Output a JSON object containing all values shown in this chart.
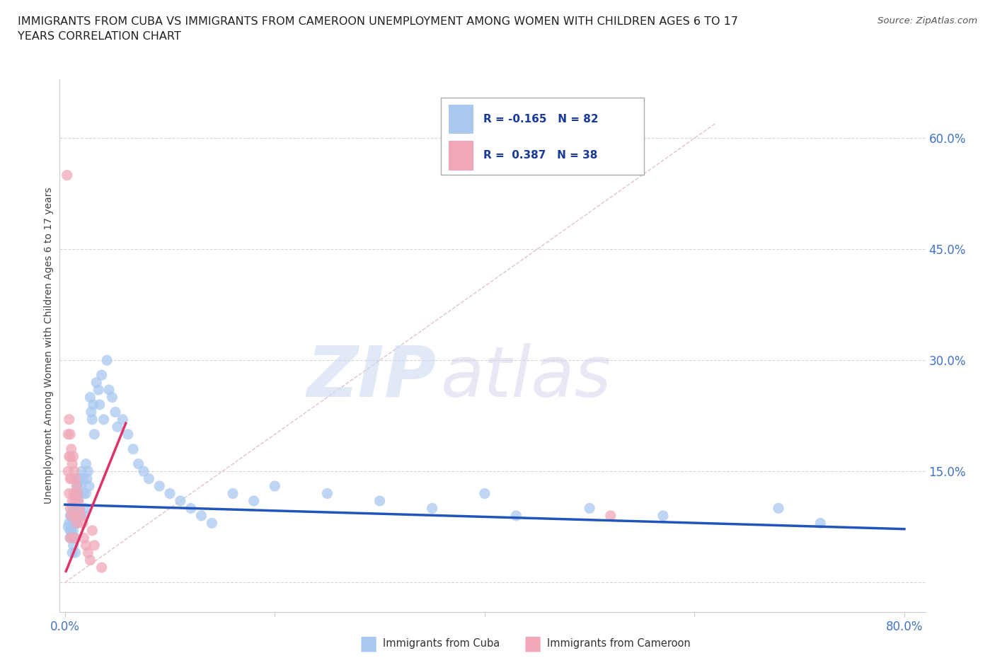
{
  "title": "IMMIGRANTS FROM CUBA VS IMMIGRANTS FROM CAMEROON UNEMPLOYMENT AMONG WOMEN WITH CHILDREN AGES 6 TO 17\nYEARS CORRELATION CHART",
  "source": "Source: ZipAtlas.com",
  "ylabel": "Unemployment Among Women with Children Ages 6 to 17 years",
  "xlim": [
    -0.005,
    0.82
  ],
  "ylim": [
    -0.04,
    0.68
  ],
  "yticks": [
    0.0,
    0.15,
    0.3,
    0.45,
    0.6
  ],
  "ytick_labels": [
    "",
    "15.0%",
    "30.0%",
    "45.0%",
    "60.0%"
  ],
  "legend_r_cuba": "-0.165",
  "legend_n_cuba": "82",
  "legend_r_cam": "0.387",
  "legend_n_cam": "38",
  "cuba_color": "#a8c8f0",
  "cameroon_color": "#f0a8b8",
  "cuba_line_color": "#2255bb",
  "cameroon_line_color": "#dd3366",
  "watermark_zip": "ZIP",
  "watermark_atlas": "atlas",
  "cuba_line_x0": 0.0,
  "cuba_line_y0": 0.105,
  "cuba_line_x1": 0.8,
  "cuba_line_y1": 0.072,
  "cam_line_x0": 0.001,
  "cam_line_y0": 0.015,
  "cam_line_x1": 0.058,
  "cam_line_y1": 0.215,
  "diag_line_color": "#ddbbcc",
  "cuba_x": [
    0.003,
    0.004,
    0.005,
    0.005,
    0.005,
    0.006,
    0.006,
    0.007,
    0.007,
    0.007,
    0.007,
    0.008,
    0.008,
    0.008,
    0.009,
    0.009,
    0.009,
    0.01,
    0.01,
    0.01,
    0.01,
    0.01,
    0.011,
    0.011,
    0.012,
    0.012,
    0.012,
    0.013,
    0.013,
    0.014,
    0.014,
    0.015,
    0.015,
    0.016,
    0.017,
    0.018,
    0.018,
    0.019,
    0.02,
    0.02,
    0.021,
    0.022,
    0.023,
    0.024,
    0.025,
    0.026,
    0.027,
    0.028,
    0.03,
    0.032,
    0.033,
    0.035,
    0.037,
    0.04,
    0.042,
    0.045,
    0.048,
    0.05,
    0.055,
    0.06,
    0.065,
    0.07,
    0.075,
    0.08,
    0.09,
    0.1,
    0.11,
    0.12,
    0.13,
    0.14,
    0.16,
    0.18,
    0.2,
    0.25,
    0.3,
    0.35,
    0.4,
    0.43,
    0.5,
    0.57,
    0.68,
    0.72
  ],
  "cuba_y": [
    0.075,
    0.08,
    0.09,
    0.07,
    0.06,
    0.09,
    0.07,
    0.1,
    0.08,
    0.06,
    0.04,
    0.09,
    0.07,
    0.05,
    0.1,
    0.08,
    0.06,
    0.12,
    0.1,
    0.08,
    0.06,
    0.04,
    0.11,
    0.09,
    0.13,
    0.11,
    0.08,
    0.12,
    0.09,
    0.14,
    0.1,
    0.13,
    0.09,
    0.15,
    0.14,
    0.12,
    0.09,
    0.1,
    0.16,
    0.12,
    0.14,
    0.15,
    0.13,
    0.25,
    0.23,
    0.22,
    0.24,
    0.2,
    0.27,
    0.26,
    0.24,
    0.28,
    0.22,
    0.3,
    0.26,
    0.25,
    0.23,
    0.21,
    0.22,
    0.2,
    0.18,
    0.16,
    0.15,
    0.14,
    0.13,
    0.12,
    0.11,
    0.1,
    0.09,
    0.08,
    0.12,
    0.11,
    0.13,
    0.12,
    0.11,
    0.1,
    0.12,
    0.09,
    0.1,
    0.09,
    0.1,
    0.08
  ],
  "cam_x": [
    0.002,
    0.003,
    0.003,
    0.004,
    0.004,
    0.004,
    0.005,
    0.005,
    0.005,
    0.005,
    0.005,
    0.006,
    0.006,
    0.006,
    0.007,
    0.007,
    0.008,
    0.008,
    0.009,
    0.009,
    0.009,
    0.01,
    0.01,
    0.011,
    0.011,
    0.012,
    0.013,
    0.014,
    0.015,
    0.017,
    0.018,
    0.02,
    0.022,
    0.024,
    0.026,
    0.028,
    0.035,
    0.52
  ],
  "cam_y": [
    0.55,
    0.2,
    0.15,
    0.22,
    0.17,
    0.12,
    0.2,
    0.17,
    0.14,
    0.1,
    0.06,
    0.18,
    0.14,
    0.09,
    0.16,
    0.11,
    0.17,
    0.12,
    0.15,
    0.11,
    0.06,
    0.14,
    0.09,
    0.13,
    0.08,
    0.12,
    0.11,
    0.1,
    0.09,
    0.08,
    0.06,
    0.05,
    0.04,
    0.03,
    0.07,
    0.05,
    0.02,
    0.09
  ]
}
